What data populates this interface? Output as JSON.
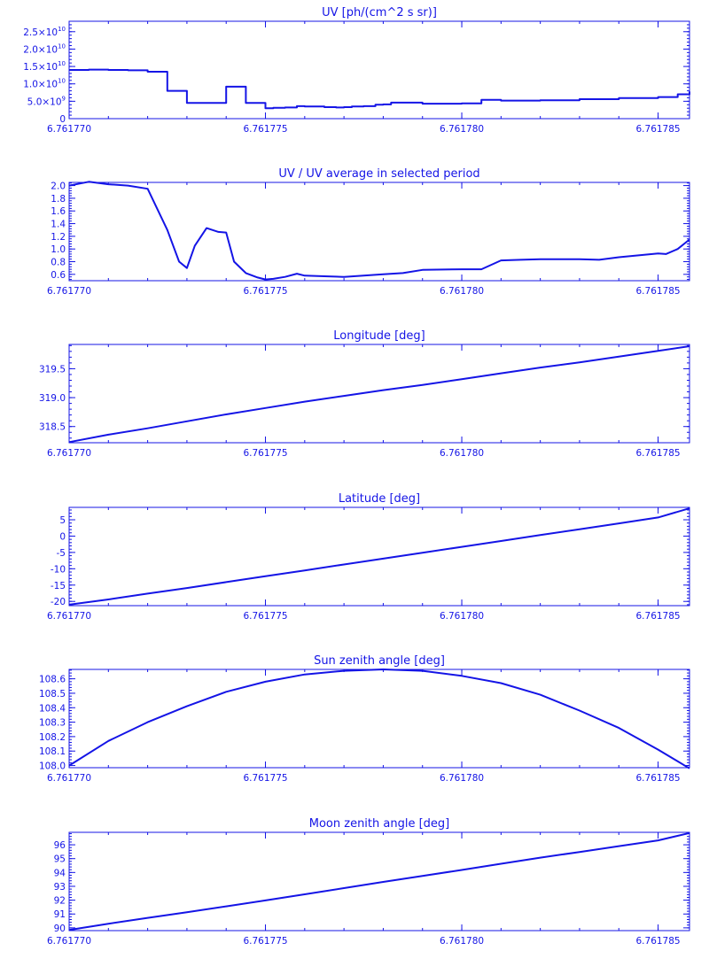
{
  "colors": {
    "line": "#1414e6",
    "background": "#ffffff"
  },
  "chart_data": [
    {
      "type": "line",
      "title": "UV [ph/(cm^2 s sr)]",
      "step": true,
      "xlim": [
        6.76177,
        6.7617858
      ],
      "ylim": [
        0,
        28000000000.0
      ],
      "x_ticks": [
        6.76177,
        6.761775,
        6.76178,
        6.761785
      ],
      "x_tick_labels": [
        "6.761770",
        "6.761775",
        "6.761780",
        "6.761785"
      ],
      "y_ticks": [
        0,
        5000000000.0,
        10000000000.0,
        15000000000.0,
        20000000000.0,
        25000000000.0
      ],
      "y_tick_labels": [
        {
          "base": "0",
          "exp": ""
        },
        {
          "base": "5.0×10",
          "exp": "9"
        },
        {
          "base": "1.0×10",
          "exp": "10"
        },
        {
          "base": "1.5×10",
          "exp": "10"
        },
        {
          "base": "2.0×10",
          "exp": "10"
        },
        {
          "base": "2.5×10",
          "exp": "10"
        }
      ],
      "x": [
        6.76177,
        6.7617705,
        6.761771,
        6.7617715,
        6.761772,
        6.7617725,
        6.761773,
        6.761774,
        6.7617745,
        6.761775,
        6.7617752,
        6.7617755,
        6.7617758,
        6.761776,
        6.7617765,
        6.7617768,
        6.761777,
        6.7617772,
        6.7617775,
        6.7617778,
        6.761778,
        6.7617782,
        6.761779,
        6.76178,
        6.7617805,
        6.761781,
        6.761782,
        6.761783,
        6.761784,
        6.761785,
        6.7617855,
        6.7617858
      ],
      "y": [
        14000000000.0,
        14100000000.0,
        14000000000.0,
        13900000000.0,
        13500000000.0,
        8000000000.0,
        4500000000.0,
        9200000000.0,
        4500000000.0,
        3000000000.0,
        3100000000.0,
        3200000000.0,
        3600000000.0,
        3500000000.0,
        3300000000.0,
        3200000000.0,
        3300000000.0,
        3500000000.0,
        3600000000.0,
        4000000000.0,
        4100000000.0,
        4600000000.0,
        4300000000.0,
        4400000000.0,
        5400000000.0,
        5200000000.0,
        5300000000.0,
        5600000000.0,
        5900000000.0,
        6200000000.0,
        7000000000.0,
        7800000000.0
      ]
    },
    {
      "type": "line",
      "title": "UV / UV average in selected period",
      "xlim": [
        6.76177,
        6.7617858
      ],
      "ylim": [
        0.5,
        2.05
      ],
      "x_ticks": [
        6.76177,
        6.761775,
        6.76178,
        6.761785
      ],
      "x_tick_labels": [
        "6.761770",
        "6.761775",
        "6.761780",
        "6.761785"
      ],
      "y_ticks": [
        0.6,
        0.8,
        1.0,
        1.2,
        1.4,
        1.6,
        1.8,
        2.0
      ],
      "y_tick_labels": [
        {
          "base": "0.6"
        },
        {
          "base": "0.8"
        },
        {
          "base": "1.0"
        },
        {
          "base": "1.2"
        },
        {
          "base": "1.4"
        },
        {
          "base": "1.6"
        },
        {
          "base": "1.8"
        },
        {
          "base": "2.0"
        }
      ],
      "x": [
        6.76177,
        6.7617705,
        6.761771,
        6.7617715,
        6.761772,
        6.7617725,
        6.7617728,
        6.761773,
        6.7617732,
        6.7617735,
        6.7617738,
        6.761774,
        6.7617742,
        6.7617745,
        6.7617748,
        6.761775,
        6.7617752,
        6.7617755,
        6.7617758,
        6.761776,
        6.7617765,
        6.761777,
        6.7617775,
        6.761778,
        6.7617785,
        6.761779,
        6.76178,
        6.7617805,
        6.761781,
        6.7617815,
        6.761782,
        6.7617825,
        6.761783,
        6.7617835,
        6.761784,
        6.7617845,
        6.761785,
        6.7617852,
        6.7617855,
        6.7617858
      ],
      "y": [
        2.0,
        2.06,
        2.02,
        2.0,
        1.95,
        1.3,
        0.8,
        0.7,
        1.05,
        1.33,
        1.27,
        1.26,
        0.8,
        0.62,
        0.55,
        0.52,
        0.53,
        0.56,
        0.61,
        0.58,
        0.57,
        0.56,
        0.58,
        0.6,
        0.62,
        0.67,
        0.68,
        0.68,
        0.82,
        0.83,
        0.84,
        0.84,
        0.84,
        0.83,
        0.87,
        0.9,
        0.93,
        0.92,
        1.0,
        1.15
      ]
    },
    {
      "type": "line",
      "title": "Longitude [deg]",
      "xlim": [
        6.76177,
        6.7617858
      ],
      "ylim": [
        318.22,
        319.92
      ],
      "x_ticks": [
        6.76177,
        6.761775,
        6.76178,
        6.761785
      ],
      "x_tick_labels": [
        "6.761770",
        "6.761775",
        "6.761780",
        "6.761785"
      ],
      "y_ticks": [
        318.5,
        319.0,
        319.5
      ],
      "y_tick_labels": [
        {
          "base": "318.5"
        },
        {
          "base": "319.0"
        },
        {
          "base": "319.5"
        }
      ],
      "x": [
        6.76177,
        6.761771,
        6.761772,
        6.761773,
        6.761774,
        6.761775,
        6.761776,
        6.761777,
        6.761778,
        6.761779,
        6.76178,
        6.761781,
        6.761782,
        6.761783,
        6.761784,
        6.761785,
        6.7617858
      ],
      "y": [
        318.23,
        318.36,
        318.47,
        318.59,
        318.71,
        318.82,
        318.93,
        319.03,
        319.13,
        319.22,
        319.32,
        319.42,
        319.52,
        319.61,
        319.71,
        319.81,
        319.89
      ]
    },
    {
      "type": "line",
      "title": "Latitude [deg]",
      "xlim": [
        6.76177,
        6.7617858
      ],
      "ylim": [
        -21.3,
        8.8
      ],
      "x_ticks": [
        6.76177,
        6.761775,
        6.76178,
        6.761785
      ],
      "x_tick_labels": [
        "6.761770",
        "6.761775",
        "6.761780",
        "6.761785"
      ],
      "y_ticks": [
        -20,
        -15,
        -10,
        -5,
        0,
        5
      ],
      "y_tick_labels": [
        {
          "base": "-20"
        },
        {
          "base": "-15"
        },
        {
          "base": "-10"
        },
        {
          "base": "-5"
        },
        {
          "base": "0"
        },
        {
          "base": "5"
        }
      ],
      "x": [
        6.76177,
        6.761771,
        6.761772,
        6.761773,
        6.761774,
        6.761775,
        6.761776,
        6.761777,
        6.761778,
        6.761779,
        6.76178,
        6.761781,
        6.761782,
        6.761783,
        6.761784,
        6.761785,
        6.7617858
      ],
      "y": [
        -21.0,
        -19.4,
        -17.6,
        -15.9,
        -14.1,
        -12.3,
        -10.5,
        -8.7,
        -6.9,
        -5.1,
        -3.3,
        -1.5,
        0.3,
        2.1,
        3.9,
        5.7,
        8.5
      ]
    },
    {
      "type": "line",
      "title": "Sun zenith angle [deg]",
      "xlim": [
        6.76177,
        6.7617858
      ],
      "ylim": [
        107.985,
        108.665
      ],
      "x_ticks": [
        6.76177,
        6.761775,
        6.76178,
        6.761785
      ],
      "x_tick_labels": [
        "6.761770",
        "6.761775",
        "6.761780",
        "6.761785"
      ],
      "y_ticks": [
        108.0,
        108.1,
        108.2,
        108.3,
        108.4,
        108.5,
        108.6
      ],
      "y_tick_labels": [
        {
          "base": "108.0"
        },
        {
          "base": "108.1"
        },
        {
          "base": "108.2"
        },
        {
          "base": "108.3"
        },
        {
          "base": "108.4"
        },
        {
          "base": "108.5"
        },
        {
          "base": "108.6"
        }
      ],
      "x": [
        6.76177,
        6.761771,
        6.761772,
        6.761773,
        6.761774,
        6.761775,
        6.761776,
        6.761777,
        6.761778,
        6.761779,
        6.76178,
        6.761781,
        6.761782,
        6.761783,
        6.761784,
        6.761785,
        6.7617858
      ],
      "y": [
        108.0,
        108.17,
        108.3,
        108.41,
        108.51,
        108.58,
        108.63,
        108.655,
        108.665,
        108.655,
        108.62,
        108.57,
        108.49,
        108.38,
        108.26,
        108.11,
        107.98
      ]
    },
    {
      "type": "line",
      "title": "Moon zenith angle [deg]",
      "xlim": [
        6.76177,
        6.7617858
      ],
      "ylim": [
        89.8,
        96.9
      ],
      "x_ticks": [
        6.76177,
        6.761775,
        6.76178,
        6.761785
      ],
      "x_tick_labels": [
        "6.761770",
        "6.761775",
        "6.761780",
        "6.761785"
      ],
      "y_ticks": [
        90,
        91,
        92,
        93,
        94,
        95,
        96
      ],
      "y_tick_labels": [
        {
          "base": "90"
        },
        {
          "base": "91"
        },
        {
          "base": "92"
        },
        {
          "base": "93"
        },
        {
          "base": "94"
        },
        {
          "base": "95"
        },
        {
          "base": "96"
        }
      ],
      "x": [
        6.76177,
        6.761771,
        6.761772,
        6.761773,
        6.761774,
        6.761775,
        6.761776,
        6.761777,
        6.761778,
        6.761779,
        6.76178,
        6.761781,
        6.761782,
        6.761783,
        6.761784,
        6.761785,
        6.7617858
      ],
      "y": [
        89.85,
        90.3,
        90.72,
        91.13,
        91.55,
        91.98,
        92.42,
        92.87,
        93.32,
        93.75,
        94.18,
        94.63,
        95.07,
        95.48,
        95.9,
        96.32,
        96.85
      ]
    }
  ]
}
